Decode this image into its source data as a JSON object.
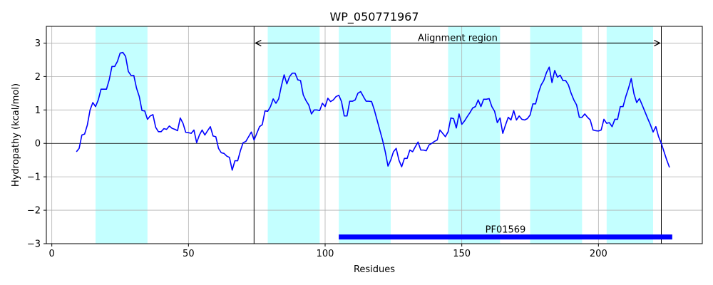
{
  "chart_data": {
    "type": "line",
    "title": "WP_050771967",
    "xlabel": "Residues",
    "ylabel": "Hydropathy (kcal/mol)",
    "xlim": [
      -2,
      238
    ],
    "ylim": [
      -3,
      3.5
    ],
    "xticks": [
      0,
      50,
      100,
      150,
      200
    ],
    "yticks": [
      -3,
      -2,
      -1,
      0,
      1,
      2,
      3
    ],
    "xtick_labels": [
      "0",
      "50",
      "100",
      "150",
      "200"
    ],
    "ytick_labels": [
      "−3",
      "−2",
      "−1",
      "0",
      "1",
      "2",
      "3"
    ],
    "grid": true,
    "zero_line": true,
    "line_color": "#0000ff",
    "band_color": "#c4ffff",
    "domain_color": "#0000ff",
    "hydrophobic_regions": [
      [
        16,
        35
      ],
      [
        79,
        98
      ],
      [
        105,
        124
      ],
      [
        145,
        164
      ],
      [
        175,
        194
      ],
      [
        203,
        220
      ]
    ],
    "alignment_region": {
      "label": "Alignment region",
      "start": 74,
      "end": 223,
      "y": 3.0
    },
    "domain": {
      "label": "PF01569",
      "start": 105,
      "end": 227,
      "y": -2.8
    },
    "series": [
      {
        "x": [
          9,
          10,
          11,
          12,
          13,
          14,
          15,
          16,
          17,
          18,
          19,
          20,
          21,
          22,
          23,
          24,
          25,
          26,
          27,
          28,
          29,
          30,
          31,
          32,
          33,
          34,
          35,
          36,
          37,
          38,
          39,
          40,
          41,
          42,
          43,
          44,
          45,
          46,
          47,
          48,
          49,
          50,
          51,
          52,
          53,
          54,
          55,
          56,
          57,
          58,
          59,
          60,
          61,
          62,
          63,
          64,
          65,
          66,
          67,
          68,
          69,
          70,
          71,
          72,
          73,
          74,
          75,
          76,
          77,
          78,
          79,
          80,
          81,
          82,
          83,
          84,
          85,
          86,
          87,
          88,
          89,
          90,
          91,
          92,
          93,
          94,
          95,
          96,
          97,
          98,
          99,
          100,
          101,
          102,
          103,
          104,
          105,
          106,
          107,
          108,
          109,
          110,
          111,
          112,
          113,
          114,
          115,
          116,
          117,
          118,
          119,
          120,
          121,
          122,
          123,
          124,
          125,
          126,
          127,
          128,
          129,
          130,
          131,
          132,
          133,
          134,
          135,
          136,
          137,
          138,
          139,
          140,
          141,
          142,
          143,
          144,
          145,
          146,
          147,
          148,
          149,
          150,
          151,
          152,
          153,
          154,
          155,
          156,
          157,
          158,
          159,
          160,
          161,
          162,
          163,
          164,
          165,
          166,
          167,
          168,
          169,
          170,
          171,
          172,
          173,
          174,
          175,
          176,
          177,
          178,
          179,
          180,
          181,
          182,
          183,
          184,
          185,
          186,
          187,
          188,
          189,
          190,
          191,
          192,
          193,
          194,
          195,
          196,
          197,
          198,
          199,
          200,
          201,
          202,
          203,
          204,
          205,
          206,
          207,
          208,
          209,
          210,
          211,
          212,
          213,
          214,
          215,
          216,
          217,
          218,
          219,
          220,
          221,
          222,
          223,
          224,
          225,
          226
        ],
        "y": [
          -0.25,
          -0.15,
          0.25,
          0.28,
          0.55,
          1.0,
          1.22,
          1.1,
          1.3,
          1.62,
          1.62,
          1.62,
          1.9,
          2.3,
          2.3,
          2.45,
          2.7,
          2.72,
          2.6,
          2.15,
          2.03,
          2.03,
          1.65,
          1.4,
          0.98,
          0.97,
          0.72,
          0.82,
          0.86,
          0.48,
          0.35,
          0.35,
          0.44,
          0.42,
          0.52,
          0.45,
          0.42,
          0.38,
          0.76,
          0.6,
          0.33,
          0.32,
          0.3,
          0.4,
          0.02,
          0.25,
          0.4,
          0.25,
          0.38,
          0.5,
          0.22,
          0.2,
          -0.15,
          -0.28,
          -0.3,
          -0.38,
          -0.42,
          -0.8,
          -0.52,
          -0.52,
          -0.22,
          0.02,
          0.06,
          0.2,
          0.34,
          0.1,
          0.3,
          0.5,
          0.56,
          0.97,
          0.96,
          1.1,
          1.33,
          1.2,
          1.33,
          1.72,
          2.05,
          1.78,
          2.0,
          2.1,
          2.1,
          1.9,
          1.88,
          1.45,
          1.28,
          1.15,
          0.88,
          1.0,
          1.0,
          0.98,
          1.2,
          1.1,
          1.35,
          1.25,
          1.3,
          1.4,
          1.44,
          1.25,
          0.82,
          0.82,
          1.26,
          1.26,
          1.3,
          1.5,
          1.55,
          1.4,
          1.26,
          1.26,
          1.25,
          1.0,
          0.7,
          0.4,
          0.1,
          -0.25,
          -0.68,
          -0.5,
          -0.25,
          -0.15,
          -0.5,
          -0.7,
          -0.45,
          -0.45,
          -0.2,
          -0.25,
          -0.1,
          0.04,
          -0.2,
          -0.2,
          -0.22,
          -0.05,
          0.0,
          0.06,
          0.1,
          0.4,
          0.3,
          0.2,
          0.35,
          0.76,
          0.74,
          0.46,
          0.88,
          0.57,
          0.67,
          0.8,
          0.92,
          1.06,
          1.1,
          1.3,
          1.1,
          1.32,
          1.32,
          1.34,
          1.1,
          0.96,
          0.62,
          0.76,
          0.3,
          0.55,
          0.78,
          0.7,
          0.98,
          0.7,
          0.82,
          0.72,
          0.7,
          0.74,
          0.85,
          1.18,
          1.18,
          1.5,
          1.74,
          1.88,
          2.12,
          2.28,
          1.82,
          2.18,
          1.98,
          2.04,
          1.88,
          1.88,
          1.75,
          1.5,
          1.3,
          1.15,
          0.78,
          0.78,
          0.88,
          0.78,
          0.7,
          0.4,
          0.38,
          0.37,
          0.4,
          0.72,
          0.6,
          0.62,
          0.5,
          0.72,
          0.72,
          1.1,
          1.1,
          1.4,
          1.65,
          1.94,
          1.48,
          1.22,
          1.34,
          1.15,
          0.95,
          0.75,
          0.56,
          0.34,
          0.5,
          0.2,
          0.0,
          -0.25,
          -0.5,
          -0.72
        ]
      }
    ]
  }
}
